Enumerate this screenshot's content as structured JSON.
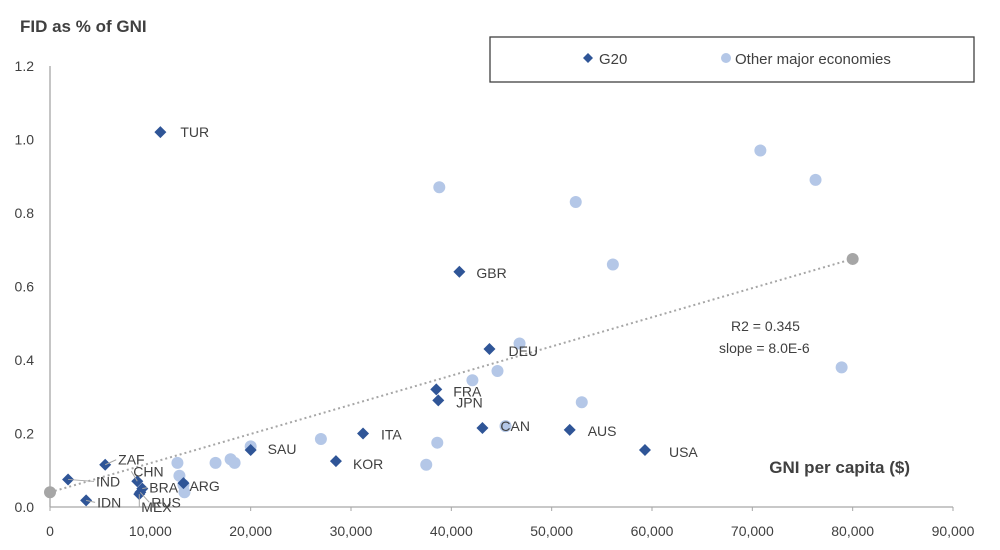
{
  "chart_data": {
    "type": "scatter",
    "title": "",
    "ylabel": "FID as % of GNI",
    "xlabel": "GNI per capita ($)",
    "xlim": [
      0,
      90000
    ],
    "ylim": [
      0.0,
      1.2
    ],
    "x_ticks": [
      "0",
      "10,000",
      "20,000",
      "30,000",
      "40,000",
      "50,000",
      "60,000",
      "70,000",
      "80,000",
      "90,000"
    ],
    "y_ticks": [
      "0.0",
      "0.2",
      "0.4",
      "0.6",
      "0.8",
      "1.0",
      "1.2"
    ],
    "grid": false,
    "legend_position": "top-right",
    "colors": {
      "g20": "#2f5597",
      "other": "#b4c7e7",
      "trend": "#a6a6a6",
      "text": "#404040",
      "axis": "#a6a6a6"
    },
    "series": [
      {
        "name": "G20",
        "marker": "diamond",
        "points": [
          {
            "label": "TUR",
            "x": 11000,
            "y": 1.02
          },
          {
            "label": "GBR",
            "x": 40800,
            "y": 0.64
          },
          {
            "label": "DEU",
            "x": 43800,
            "y": 0.43
          },
          {
            "label": "FRA",
            "x": 38500,
            "y": 0.32
          },
          {
            "label": "JPN",
            "x": 38700,
            "y": 0.29
          },
          {
            "label": "ITA",
            "x": 31200,
            "y": 0.2
          },
          {
            "label": "CAN",
            "x": 43100,
            "y": 0.215
          },
          {
            "label": "AUS",
            "x": 51800,
            "y": 0.21
          },
          {
            "label": "USA",
            "x": 59300,
            "y": 0.155
          },
          {
            "label": "SAU",
            "x": 20000,
            "y": 0.155
          },
          {
            "label": "KOR",
            "x": 28500,
            "y": 0.125
          },
          {
            "label": "ZAF",
            "x": 5500,
            "y": 0.115
          },
          {
            "label": "IND",
            "x": 1800,
            "y": 0.075
          },
          {
            "label": "IDN",
            "x": 3600,
            "y": 0.018
          },
          {
            "label": "CHN",
            "x": 8700,
            "y": 0.07
          },
          {
            "label": "BRA",
            "x": 9200,
            "y": 0.05
          },
          {
            "label": "MEX",
            "x": 8900,
            "y": 0.035
          },
          {
            "label": "ARG",
            "x": 13300,
            "y": 0.065
          },
          {
            "label": "RUS",
            "x": 9000,
            "y": 0.04
          }
        ]
      },
      {
        "name": "Other major economies",
        "marker": "circle",
        "points": [
          {
            "x": 70800,
            "y": 0.97
          },
          {
            "x": 76300,
            "y": 0.89
          },
          {
            "x": 38800,
            "y": 0.87
          },
          {
            "x": 52400,
            "y": 0.83
          },
          {
            "x": 56100,
            "y": 0.66
          },
          {
            "x": 46800,
            "y": 0.445
          },
          {
            "x": 44600,
            "y": 0.37
          },
          {
            "x": 42100,
            "y": 0.345
          },
          {
            "x": 78900,
            "y": 0.38
          },
          {
            "x": 53000,
            "y": 0.285
          },
          {
            "x": 45400,
            "y": 0.22
          },
          {
            "x": 38600,
            "y": 0.175
          },
          {
            "x": 27000,
            "y": 0.185
          },
          {
            "x": 20000,
            "y": 0.165
          },
          {
            "x": 37500,
            "y": 0.115
          },
          {
            "x": 12700,
            "y": 0.12
          },
          {
            "x": 16500,
            "y": 0.12
          },
          {
            "x": 18000,
            "y": 0.13
          },
          {
            "x": 18400,
            "y": 0.12
          },
          {
            "x": 12900,
            "y": 0.085
          },
          {
            "x": 13400,
            "y": 0.04
          },
          {
            "x": 13300,
            "y": 0.06
          }
        ]
      }
    ],
    "trendline": {
      "style": "dotted",
      "from": {
        "x": 0,
        "y": 0.04
      },
      "to": {
        "x": 80000,
        "y": 0.675
      }
    },
    "annotations": [
      "R2 = 0.345",
      "slope = 8.0E-6"
    ]
  }
}
